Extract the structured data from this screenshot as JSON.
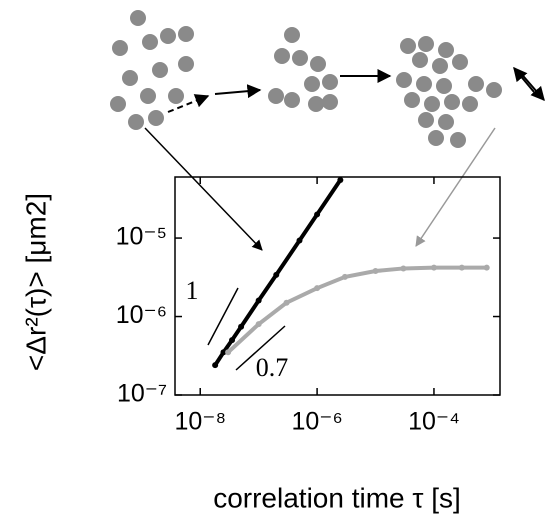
{
  "chart_data": {
    "type": "line",
    "log_x": true,
    "log_y": true,
    "x_label": "correlation time τ [s]",
    "y_label": "<Δr²(τ)>  [μm2]",
    "annotations": [
      "1",
      "0.7"
    ],
    "xlim": [
      3.7e-09,
      0.00135
    ],
    "ylim": [
      1e-07,
      6e-05
    ],
    "xticks": [
      {
        "value": 1e-08,
        "label": "10⁻⁸"
      },
      {
        "value": 1e-06,
        "label": "10⁻⁶"
      },
      {
        "value": 0.0001,
        "label": "10⁻⁴"
      }
    ],
    "yticks": [
      {
        "value": 1e-07,
        "label": "10⁻⁷"
      },
      {
        "value": 1e-06,
        "label": "10⁻⁶"
      },
      {
        "value": 1e-05,
        "label": "10⁻⁵"
      }
    ],
    "series": [
      {
        "color": "#000000",
        "x": [
          1.8e-08,
          2.5e-08,
          3.5e-08,
          5e-08,
          1e-07,
          2e-07,
          5e-07,
          1e-06,
          2.5e-06
        ],
        "values": [
          2.4e-07,
          3.5e-07,
          5e-07,
          7.4e-07,
          1.6e-06,
          3.4e-06,
          9.3e-06,
          2e-05,
          5.5e-05
        ]
      },
      {
        "color": "#aaaaaa",
        "x": [
          3e-08,
          1e-07,
          3e-07,
          1e-06,
          3e-06,
          1e-05,
          3e-05,
          0.0001,
          0.0003,
          0.0008
        ],
        "values": [
          3.5e-07,
          8e-07,
          1.5e-06,
          2.3e-06,
          3.2e-06,
          3.8e-06,
          4.1e-06,
          4.2e-06,
          4.2e-06,
          4.2e-06
        ]
      }
    ]
  }
}
